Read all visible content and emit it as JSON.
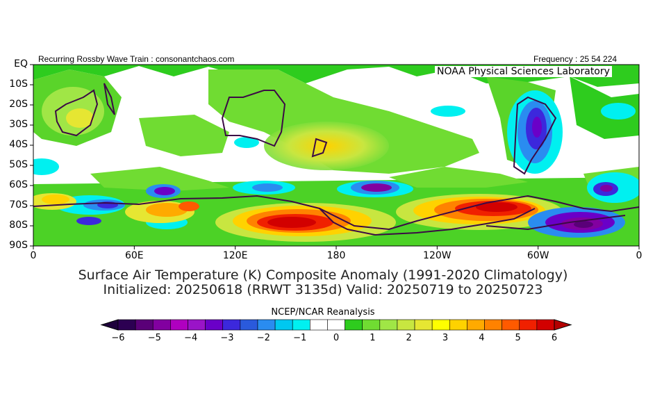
{
  "header": {
    "left_text": "Recurring Rossby Wave Train : consonantchaos.com",
    "right_text": "Frequency : 25 54 224",
    "lab_name": "NOAA Physical Sciences Laboratory"
  },
  "map": {
    "lat_labels": [
      "EQ",
      "10S",
      "20S",
      "30S",
      "40S",
      "50S",
      "60S",
      "70S",
      "80S",
      "90S"
    ],
    "lon_labels": [
      "0",
      "60E",
      "120E",
      "180",
      "120W",
      "60W",
      "0"
    ],
    "lat_range": [
      0,
      -90
    ],
    "lon_range": [
      0,
      360
    ],
    "anomalies": [
      {
        "lon": 165,
        "lat": -77,
        "value": 6
      },
      {
        "lon": 258,
        "lat": -74,
        "value": 5.5
      },
      {
        "lon": 292,
        "lat": -80,
        "value": 4
      },
      {
        "lon": 190,
        "lat": -40,
        "value": 2.5
      },
      {
        "lon": 20,
        "lat": -20,
        "value": 2
      },
      {
        "lon": 83,
        "lat": -74,
        "value": 3
      },
      {
        "lon": 5,
        "lat": -67,
        "value": 2.5
      },
      {
        "lon": 30,
        "lat": -78,
        "value": 2
      },
      {
        "lon": 317,
        "lat": -80,
        "value": -5
      },
      {
        "lon": 299,
        "lat": -32,
        "value": -4
      },
      {
        "lon": 60,
        "lat": -64,
        "value": -4
      },
      {
        "lon": 165,
        "lat": -62,
        "value": -3
      },
      {
        "lon": 338,
        "lat": -63,
        "value": -4
      },
      {
        "lon": 43,
        "lat": -69,
        "value": -2
      },
      {
        "lon": 108,
        "lat": -30,
        "value": -1
      }
    ]
  },
  "title": {
    "line1": "Surface Air Temperature (K) Composite Anomaly (1991-2020 Climatology)",
    "line2": "Initialized: 20250618 (RRWT 3135d) Valid: 20250719 to 20250723"
  },
  "colorbar": {
    "title": "NCEP/NCAR Reanalysis",
    "tick_labels": [
      "-6",
      "-5",
      "-4",
      "-3",
      "-2",
      "-1",
      "0",
      "1",
      "2",
      "3",
      "4",
      "5",
      "6"
    ],
    "colors": [
      "#2c0052",
      "#5a0078",
      "#8200a0",
      "#b000c0",
      "#9a14c8",
      "#6a00c8",
      "#3c28dc",
      "#2a5adc",
      "#2a8cf0",
      "#00c8f0",
      "#00f0f0",
      "#ffffff",
      "#ffffff",
      "#2ecc1e",
      "#70dc32",
      "#a0e646",
      "#c8e640",
      "#e6e632",
      "#ffff00",
      "#ffd200",
      "#ffaa00",
      "#ff8200",
      "#ff5a00",
      "#f02000",
      "#d20000"
    ],
    "low_arrow_color": "#1e003c",
    "high_arrow_color": "#b40000"
  }
}
